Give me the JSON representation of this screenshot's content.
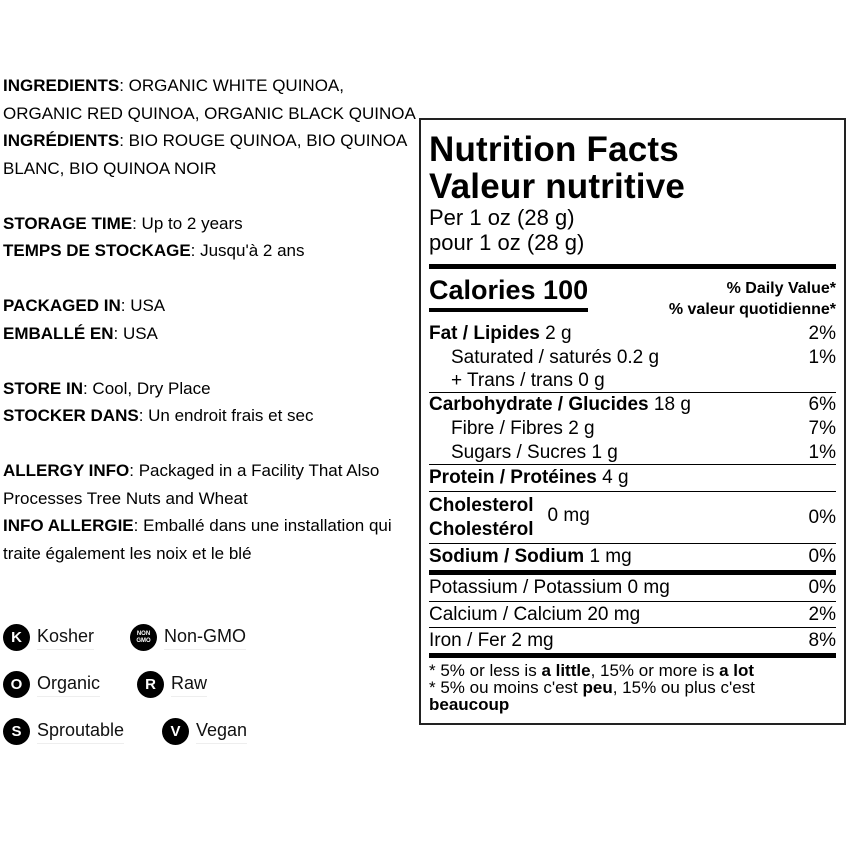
{
  "left": {
    "ingredients_label": "INGREDIENTS",
    "ingredients": ": ORGANIC WHITE QUINOA, ORGANIC RED QUINOA, ORGANIC BLACK QUINOA",
    "ingredients_fr_label": "INGRÉDIENTS",
    "ingredients_fr": ": BIO ROUGE QUINOA, BIO QUINOA BLANC, BIO QUINOA NOIR",
    "storage_label": "STORAGE TIME",
    "storage": ": Up to 2 years",
    "storage_fr_label": "TEMPS DE STOCKAGE",
    "storage_fr": ": Jusqu'à 2 ans",
    "packaged_label": "PACKAGED IN",
    "packaged": ": USA",
    "packaged_fr_label": "EMBALLÉ EN",
    "packaged_fr": ": USA",
    "store_label": "STORE IN",
    "store": ": Cool, Dry Place",
    "store_fr_label": "STOCKER DANS",
    "store_fr": ": Un endroit frais et sec",
    "allergy_label": "ALLERGY INFO",
    "allergy": ": Packaged in a Facility That Also Processes Tree Nuts and Wheat",
    "allergy_fr_label": "INFO ALLERGIE",
    "allergy_fr": ": Emballé dans une installation qui traite également les noix et le blé"
  },
  "badges": [
    {
      "icon": "K",
      "label": "Kosher"
    },
    {
      "icon": "NON GMO",
      "label": "Non-GMO"
    },
    {
      "icon": "O",
      "label": "Organic"
    },
    {
      "icon": "R",
      "label": "Raw"
    },
    {
      "icon": "S",
      "label": "Sproutable"
    },
    {
      "icon": "V",
      "label": "Vegan"
    }
  ],
  "nutrition": {
    "title": "Nutrition Facts",
    "title_fr": "Valeur nutritive",
    "serving": "Per 1 oz (28 g)",
    "serving_fr": "pour 1 oz (28 g)",
    "calories": "Calories 100",
    "dv": "% Daily Value*",
    "dv_fr": "% valeur quotidienne*",
    "fat": {
      "label": "Fat / Lipides",
      "amount": "2 g",
      "dv": "2%"
    },
    "sat": {
      "label": "Saturated / saturés 0.2 g",
      "dv": "1%"
    },
    "trans": {
      "label": "+ Trans / trans 0 g"
    },
    "carb": {
      "label": "Carbohydrate / Glucides",
      "amount": "18 g",
      "dv": "6%"
    },
    "fibre": {
      "label": "Fibre / Fibres 2 g",
      "dv": "7%"
    },
    "sugars": {
      "label": "Sugars / Sucres 1 g",
      "dv": "1%"
    },
    "protein": {
      "label": "Protein / Protéines",
      "amount": "4 g"
    },
    "chol": {
      "label": "Cholesterol",
      "label_fr": "Cholestérol",
      "amount": "0 mg",
      "dv": "0%"
    },
    "sodium": {
      "label": "Sodium / Sodium",
      "amount": "1 mg",
      "dv": "0%"
    },
    "potassium": {
      "label": "Potassium / Potassium 0 mg",
      "dv": "0%"
    },
    "calcium": {
      "label": "Calcium / Calcium 20 mg",
      "dv": "2%"
    },
    "iron": {
      "label": "Iron / Fer 2 mg",
      "dv": "8%"
    },
    "foot1_a": "* 5% or less is ",
    "foot1_b": "a little",
    "foot1_c": ", 15% or more is ",
    "foot1_d": "a lot",
    "foot2_a": "* 5% ou moins c'est ",
    "foot2_b": "peu",
    "foot2_c": ", 15% ou plus c'est",
    "foot2_d": "beaucoup"
  }
}
